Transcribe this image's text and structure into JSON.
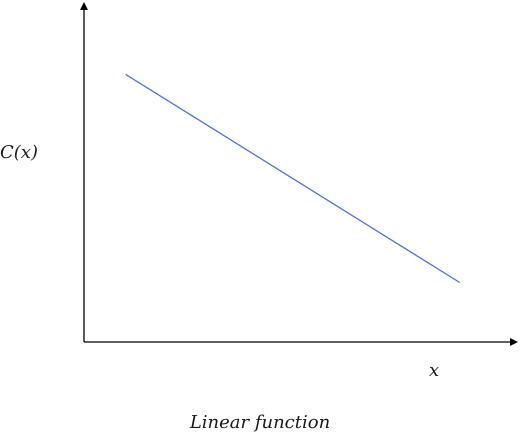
{
  "chart_data": {
    "type": "line",
    "title": "",
    "caption": "Linear function",
    "xlabel": "x",
    "ylabel": "C(x)",
    "grid": false,
    "legend": "none",
    "axis_style": "arrows",
    "series": [
      {
        "color": "#4a6fe0",
        "x": [
          1,
          9
        ],
        "y": [
          9,
          2
        ]
      }
    ],
    "xlim": [
      0,
      10.3
    ],
    "ylim": [
      0,
      11.3
    ]
  }
}
